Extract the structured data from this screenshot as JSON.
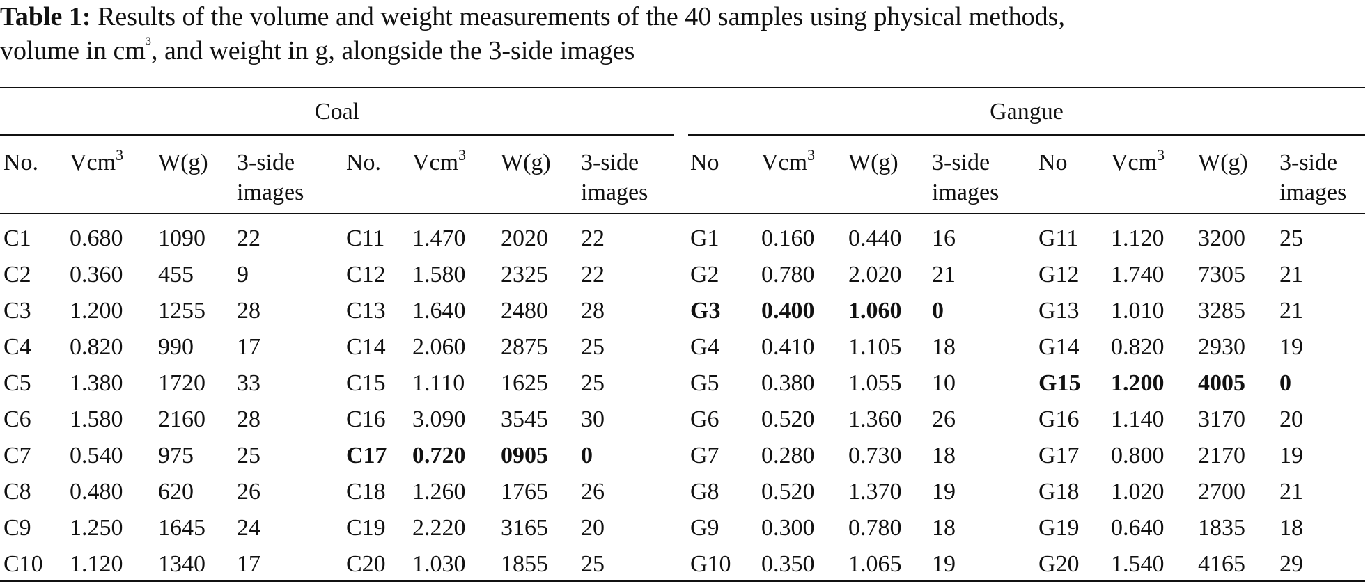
{
  "caption": {
    "label": "Table 1:",
    "text_line1": " Results of the volume and weight measurements of the 40 samples using physical methods,",
    "text_line2_a": "volume in cm",
    "text_line2_sup": "3",
    "text_line2_b": ", and weight in g, alongside the 3-side images"
  },
  "groups": {
    "coal": "Coal",
    "gangue": "Gangue"
  },
  "headers": {
    "coal": {
      "no": "No.",
      "v": "Vcm",
      "v_sup": "3",
      "w": "W(g)",
      "img1": "3-side",
      "img2": "images"
    },
    "gangue": {
      "no": "No",
      "v": "Vcm",
      "v_sup": "3",
      "w": "W(g)",
      "img1": "3-side",
      "img2": "images"
    }
  },
  "rows": [
    {
      "c1": [
        "C1",
        "0.680",
        "1090",
        "22"
      ],
      "c2": [
        "C11",
        "1.470",
        "2020",
        "22"
      ],
      "g1": [
        "G1",
        "0.160",
        "0.440",
        "16"
      ],
      "g2": [
        "G11",
        "1.120",
        "3200",
        "25"
      ]
    },
    {
      "c1": [
        "C2",
        "0.360",
        "455",
        "9"
      ],
      "c2": [
        "C12",
        "1.580",
        "2325",
        "22"
      ],
      "g1": [
        "G2",
        "0.780",
        "2.020",
        "21"
      ],
      "g2": [
        "G12",
        "1.740",
        "7305",
        "21"
      ]
    },
    {
      "c1": [
        "C3",
        "1.200",
        "1255",
        "28"
      ],
      "c2": [
        "C13",
        "1.640",
        "2480",
        "28"
      ],
      "g1": [
        "G3",
        "0.400",
        "1.060",
        "0"
      ],
      "g2": [
        "G13",
        "1.010",
        "3285",
        "21"
      ]
    },
    {
      "c1": [
        "C4",
        "0.820",
        "990",
        "17"
      ],
      "c2": [
        "C14",
        "2.060",
        "2875",
        "25"
      ],
      "g1": [
        "G4",
        "0.410",
        "1.105",
        "18"
      ],
      "g2": [
        "G14",
        "0.820",
        "2930",
        "19"
      ]
    },
    {
      "c1": [
        "C5",
        "1.380",
        "1720",
        "33"
      ],
      "c2": [
        "C15",
        "1.110",
        "1625",
        "25"
      ],
      "g1": [
        "G5",
        "0.380",
        "1.055",
        "10"
      ],
      "g2": [
        "G15",
        "1.200",
        "4005",
        "0"
      ]
    },
    {
      "c1": [
        "C6",
        "1.580",
        "2160",
        "28"
      ],
      "c2": [
        "C16",
        "3.090",
        "3545",
        "30"
      ],
      "g1": [
        "G6",
        "0.520",
        "1.360",
        "26"
      ],
      "g2": [
        "G16",
        "1.140",
        "3170",
        "20"
      ]
    },
    {
      "c1": [
        "C7",
        "0.540",
        "975",
        "25"
      ],
      "c2": [
        "C17",
        "0.720",
        "0905",
        "0"
      ],
      "g1": [
        "G7",
        "0.280",
        "0.730",
        "18"
      ],
      "g2": [
        "G17",
        "0.800",
        "2170",
        "19"
      ]
    },
    {
      "c1": [
        "C8",
        "0.480",
        "620",
        "26"
      ],
      "c2": [
        "C18",
        "1.260",
        "1765",
        "26"
      ],
      "g1": [
        "G8",
        "0.520",
        "1.370",
        "19"
      ],
      "g2": [
        "G18",
        "1.020",
        "2700",
        "21"
      ]
    },
    {
      "c1": [
        "C9",
        "1.250",
        "1645",
        "24"
      ],
      "c2": [
        "C19",
        "2.220",
        "3165",
        "20"
      ],
      "g1": [
        "G9",
        "0.300",
        "0.780",
        "18"
      ],
      "g2": [
        "G19",
        "0.640",
        "1835",
        "18"
      ]
    },
    {
      "c1": [
        "C10",
        "1.120",
        "1340",
        "17"
      ],
      "c2": [
        "C20",
        "1.030",
        "1855",
        "25"
      ],
      "g1": [
        "G10",
        "0.350",
        "1.065",
        "19"
      ],
      "g2": [
        "G20",
        "1.540",
        "4165",
        "29"
      ]
    }
  ],
  "bold_rows": {
    "c2": [
      6
    ],
    "g1": [
      2
    ],
    "g2": [
      4
    ]
  }
}
